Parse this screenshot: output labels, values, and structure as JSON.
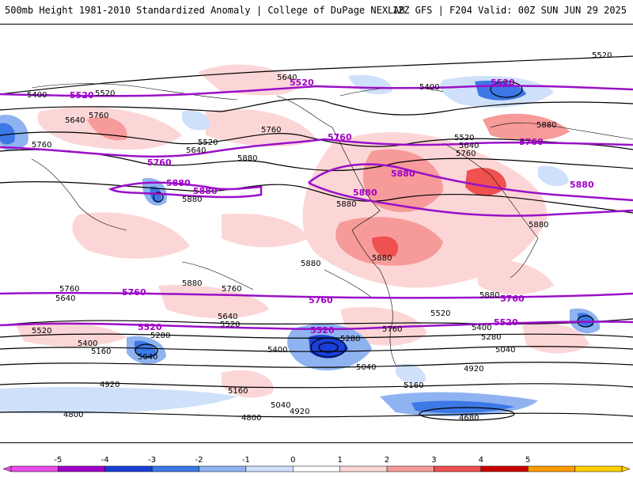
{
  "header": {
    "title": "500mb Height 1981-2010 Standardized Anomaly | College of DuPage NEXLAB",
    "run_info": "12Z GFS | F204 Valid: 00Z SUN JUN 29 2025"
  },
  "map": {
    "contour_labels": [
      "5520",
      "5400",
      "5520",
      "5640",
      "5760",
      "5640",
      "5760",
      "5520",
      "5640",
      "5760",
      "5880",
      "5880",
      "5880",
      "5880",
      "5880",
      "5880",
      "5880",
      "5760",
      "5640",
      "5760",
      "5520",
      "5640",
      "5520",
      "5400",
      "5280",
      "5160",
      "5040",
      "5400",
      "5280",
      "5160",
      "5040",
      "4920",
      "5040",
      "4920",
      "4800",
      "4800",
      "4680",
      "5880",
      "5520",
      "5400",
      "5280",
      "5040",
      "4920",
      "5160",
      "5400",
      "5520",
      "5640",
      "5760",
      "5880",
      "5760"
    ],
    "climo_labels": [
      "5520",
      "5520",
      "5760",
      "5760",
      "5880",
      "5880",
      "5760",
      "5880",
      "5760",
      "5880",
      "5520",
      "5760",
      "5520",
      "5520",
      "5520",
      "5760",
      "5880"
    ]
  },
  "colorbar": {
    "ticks": [
      "-5",
      "-4",
      "-3",
      "-2",
      "-1",
      "0",
      "1",
      "2",
      "3",
      "4",
      "5"
    ],
    "colors": [
      "#e84de8",
      "#a000c8",
      "#1a3fd6",
      "#3c78e6",
      "#8fb3f0",
      "#cfe0fa",
      "#ffffff",
      "#fcd6d6",
      "#f79a9a",
      "#ef5050",
      "#c80000",
      "#ff9b00",
      "#ffd000"
    ]
  }
}
